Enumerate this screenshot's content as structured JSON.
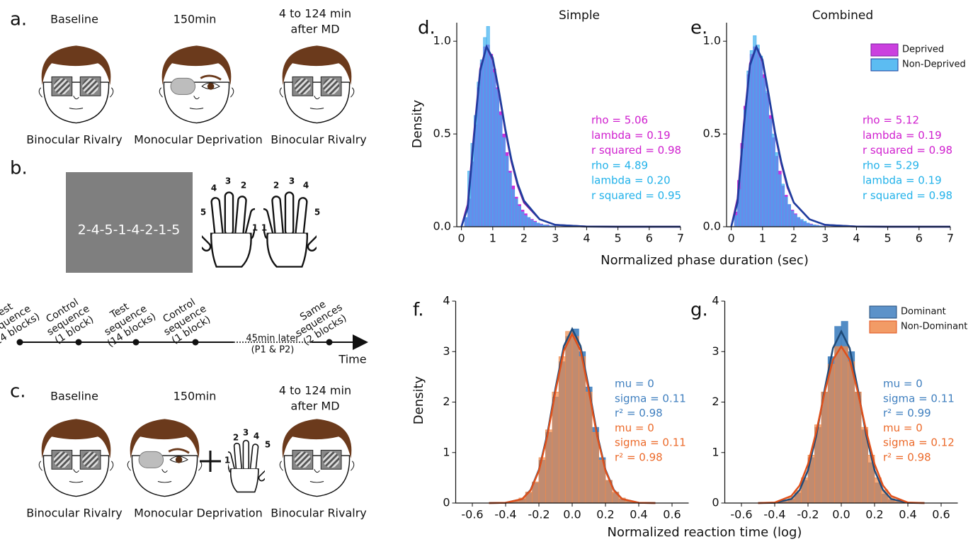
{
  "diagram": {
    "panel_a": {
      "letter": "a.",
      "top_labels": [
        "Baseline",
        "150min",
        "4 to 124 min",
        "after MD"
      ],
      "bottom_labels": [
        "Binocular Rivalry",
        "Monocular Deprivation",
        "Binocular Rivalry"
      ]
    },
    "panel_b": {
      "letter": "b.",
      "sequence": "2-4-5-1-4-2-1-5",
      "left_fingers": [
        "5",
        "4",
        "3",
        "2",
        "1"
      ],
      "right_fingers": [
        "1",
        "2",
        "3",
        "4",
        "5"
      ],
      "timeline": [
        [
          "Test",
          "sequence",
          "(14 blocks)"
        ],
        [
          "Control",
          "sequence",
          "(1 block)"
        ],
        [
          "Test",
          "sequence",
          "(14 blocks)"
        ],
        [
          "Control",
          "sequence",
          "(1 block)"
        ],
        [
          "Same",
          "sequences",
          "(2 blocks)"
        ]
      ],
      "gap": [
        "45min later",
        "(P1 & P2)"
      ],
      "axis": "Time"
    },
    "panel_c": {
      "letter": "c.",
      "top_labels": [
        "Baseline",
        "150min",
        "4 to 124 min",
        "after MD"
      ],
      "bottom_labels": [
        "Binocular Rivalry",
        "Monocular Deprivation",
        "Binocular Rivalry"
      ],
      "fingers": [
        "1",
        "2",
        "3",
        "4",
        "5"
      ]
    }
  },
  "chart_data": [
    {
      "type": "histogram",
      "panel": "d.",
      "title": "Simple",
      "ylabel": "Density",
      "xlabel": "Normalized phase duration (sec)",
      "xlim": [
        -0.15,
        7
      ],
      "xticks": [
        0,
        1,
        2,
        3,
        4,
        5,
        6,
        7
      ],
      "ylim": [
        0,
        1.1
      ],
      "yticks": [
        {
          "value": 0,
          "label": "0.0"
        },
        {
          "value": 0.5,
          "label": "0.5"
        },
        {
          "value": 1,
          "label": "1.0"
        }
      ],
      "bins": [
        0,
        0.1,
        0.2,
        0.3,
        0.4,
        0.5,
        0.6,
        0.7,
        0.8,
        0.9,
        1,
        1.1,
        1.2,
        1.3,
        1.4,
        1.5,
        1.6,
        1.7,
        1.8,
        1.9,
        2,
        2.1,
        2.2,
        2.3,
        2.4,
        2.5,
        2.6,
        2.7,
        2.8,
        2.9,
        3
      ],
      "fit_x": [
        0,
        0.2,
        0.4,
        0.6,
        0.8,
        1,
        1.2,
        1.4,
        1.6,
        1.8,
        2,
        2.5,
        3,
        4,
        5,
        6,
        7
      ],
      "series": [
        {
          "name": "Deprived",
          "color": "#c21fd9",
          "fit_color": "#7a1aa0",
          "values": [
            0,
            0.05,
            0.15,
            0.35,
            0.55,
            0.75,
            0.88,
            0.97,
            0.98,
            0.93,
            0.85,
            0.75,
            0.62,
            0.5,
            0.4,
            0.3,
            0.22,
            0.16,
            0.12,
            0.09,
            0.07,
            0.05,
            0.04,
            0.03,
            0.02,
            0.015,
            0.01,
            0.01,
            0.005,
            0.005
          ],
          "fit": [
            0,
            0.12,
            0.5,
            0.85,
            0.97,
            0.9,
            0.72,
            0.52,
            0.35,
            0.22,
            0.13,
            0.04,
            0.01,
            0.001,
            0,
            0,
            0
          ],
          "stats": [
            "rho = 5.06",
            "lambda = 0.19",
            "r squared = 0.98"
          ],
          "stats_color": "#d020cf"
        },
        {
          "name": "Non-Deprived",
          "color": "#3fb0f0",
          "fit_color": "#1d3f9e",
          "values": [
            0,
            0.05,
            0.3,
            0.45,
            0.6,
            0.78,
            0.9,
            1.02,
            1.08,
            0.92,
            0.83,
            0.74,
            0.6,
            0.48,
            0.38,
            0.29,
            0.2,
            0.15,
            0.11,
            0.08,
            0.06,
            0.05,
            0.035,
            0.025,
            0.02,
            0.012,
            0.01,
            0.008,
            0.005,
            0.004
          ],
          "fit": [
            0,
            0.1,
            0.48,
            0.84,
            0.97,
            0.91,
            0.73,
            0.53,
            0.36,
            0.23,
            0.14,
            0.04,
            0.01,
            0.001,
            0,
            0,
            0
          ],
          "stats": [
            "rho = 4.89",
            "lambda = 0.20",
            "r squared = 0.95"
          ],
          "stats_color": "#22b2ea"
        }
      ]
    },
    {
      "type": "histogram",
      "panel": "e.",
      "title": "Combined",
      "legend": "upper right",
      "xlim": [
        -0.15,
        7
      ],
      "xticks": [
        0,
        1,
        2,
        3,
        4,
        5,
        6,
        7
      ],
      "ylim": [
        0,
        1.1
      ],
      "yticks": [
        {
          "value": 0,
          "label": "0.0"
        },
        {
          "value": 0.5,
          "label": "0.5"
        },
        {
          "value": 1,
          "label": "1.0"
        }
      ],
      "bins": [
        0,
        0.1,
        0.2,
        0.3,
        0.4,
        0.5,
        0.6,
        0.7,
        0.8,
        0.9,
        1,
        1.1,
        1.2,
        1.3,
        1.4,
        1.5,
        1.6,
        1.7,
        1.8,
        1.9,
        2,
        2.1,
        2.2,
        2.3,
        2.4,
        2.5,
        2.6,
        2.7,
        2.8,
        2.9,
        3
      ],
      "fit_x": [
        0,
        0.2,
        0.4,
        0.6,
        0.8,
        1,
        1.2,
        1.4,
        1.6,
        1.8,
        2,
        2.5,
        3,
        4,
        5,
        6,
        7
      ],
      "series": [
        {
          "name": "Deprived",
          "color": "#c21fd9",
          "fit_color": "#7a1aa0",
          "values": [
            0,
            0.08,
            0.25,
            0.45,
            0.65,
            0.82,
            0.93,
            0.97,
            0.96,
            0.9,
            0.82,
            0.72,
            0.6,
            0.48,
            0.38,
            0.3,
            0.22,
            0.17,
            0.12,
            0.09,
            0.07,
            0.05,
            0.035,
            0.025,
            0.02,
            0.015,
            0.01,
            0.008,
            0.005,
            0.004
          ],
          "fit": [
            0,
            0.15,
            0.55,
            0.88,
            0.97,
            0.89,
            0.7,
            0.5,
            0.34,
            0.21,
            0.13,
            0.04,
            0.01,
            0.001,
            0,
            0,
            0
          ],
          "stats": [
            "rho = 5.12",
            "lambda = 0.19",
            "r squared = 0.98"
          ],
          "stats_color": "#d020cf"
        },
        {
          "name": "Non-Deprived",
          "color": "#3fb0f0",
          "fit_color": "#1d3f9e",
          "values": [
            0,
            0.06,
            0.2,
            0.42,
            0.63,
            0.84,
            0.95,
            1.03,
            0.98,
            0.92,
            0.8,
            0.73,
            0.58,
            0.5,
            0.4,
            0.28,
            0.23,
            0.16,
            0.12,
            0.085,
            0.065,
            0.05,
            0.04,
            0.03,
            0.02,
            0.012,
            0.01,
            0.007,
            0.005,
            0.003
          ],
          "fit": [
            0,
            0.13,
            0.53,
            0.87,
            0.97,
            0.9,
            0.71,
            0.51,
            0.35,
            0.22,
            0.13,
            0.04,
            0.01,
            0.001,
            0,
            0,
            0
          ],
          "stats": [
            "rho = 5.29",
            "lambda = 0.19",
            "r squared = 0.98"
          ],
          "stats_color": "#22b2ea"
        }
      ]
    },
    {
      "type": "histogram",
      "panel": "f.",
      "ylabel": "Density",
      "xlabel": "Normalized reaction time (log)",
      "xlim": [
        -0.7,
        0.7
      ],
      "xticks": [
        -0.6,
        -0.4,
        -0.2,
        {
          "value": 0,
          "label": "0.0"
        },
        0.2,
        0.4,
        0.6
      ],
      "ylim": [
        0,
        4
      ],
      "yticks": [
        0,
        1,
        2,
        3,
        4
      ],
      "bins": [
        -0.4,
        -0.36,
        -0.32,
        -0.28,
        -0.24,
        -0.2,
        -0.16,
        -0.12,
        -0.08,
        -0.04,
        0,
        0.04,
        0.08,
        0.12,
        0.16,
        0.2,
        0.24,
        0.28,
        0.32,
        0.36,
        0.4
      ],
      "fit_x": [
        -0.5,
        -0.4,
        -0.3,
        -0.25,
        -0.2,
        -0.15,
        -0.1,
        -0.05,
        0,
        0.05,
        0.1,
        0.15,
        0.2,
        0.25,
        0.3,
        0.4,
        0.5
      ],
      "series": [
        {
          "name": "Dominant",
          "color": "#3f7fbf",
          "fit_color": "#1f4a78",
          "values": [
            0.01,
            0.03,
            0.08,
            0.2,
            0.4,
            0.85,
            1.4,
            2.1,
            2.8,
            3.3,
            3.45,
            3.0,
            2.3,
            1.5,
            0.9,
            0.45,
            0.2,
            0.08,
            0.03,
            0.01
          ],
          "fit": [
            0,
            0.005,
            0.08,
            0.26,
            0.66,
            1.36,
            2.28,
            3.11,
            3.45,
            3.11,
            2.28,
            1.36,
            0.66,
            0.26,
            0.08,
            0.005,
            0
          ],
          "stats": [
            "mu = 0",
            "sigma = 0.11",
            "r² = 0.98"
          ],
          "stats_color": "#3f7fbf"
        },
        {
          "name": "Non-Dominant",
          "color": "#f08a4b",
          "fit_color": "#e0501a",
          "values": [
            0.02,
            0.04,
            0.1,
            0.22,
            0.42,
            0.9,
            1.45,
            2.2,
            2.9,
            3.4,
            3.3,
            2.9,
            2.2,
            1.4,
            0.85,
            0.45,
            0.22,
            0.1,
            0.04,
            0.02
          ],
          "fit": [
            0,
            0.005,
            0.08,
            0.25,
            0.64,
            1.32,
            2.22,
            3.02,
            3.35,
            3.02,
            2.22,
            1.32,
            0.64,
            0.25,
            0.08,
            0.005,
            0
          ],
          "stats": [
            "mu = 0",
            "sigma = 0.11",
            "r² = 0.98"
          ],
          "stats_color": "#ec6a2a"
        }
      ]
    },
    {
      "type": "histogram",
      "panel": "g.",
      "legend": "upper right",
      "xlim": [
        -0.7,
        0.7
      ],
      "xticks": [
        -0.6,
        -0.4,
        -0.2,
        {
          "value": 0,
          "label": "0.0"
        },
        0.2,
        0.4,
        0.6
      ],
      "ylim": [
        0,
        4
      ],
      "yticks": [
        0,
        1,
        2,
        3,
        4
      ],
      "bins": [
        -0.4,
        -0.36,
        -0.32,
        -0.28,
        -0.24,
        -0.2,
        -0.16,
        -0.12,
        -0.08,
        -0.04,
        0,
        0.04,
        0.08,
        0.12,
        0.16,
        0.2,
        0.24,
        0.28,
        0.32,
        0.36,
        0.4
      ],
      "fit_x": [
        -0.5,
        -0.4,
        -0.3,
        -0.25,
        -0.2,
        -0.15,
        -0.1,
        -0.05,
        0,
        0.05,
        0.1,
        0.15,
        0.2,
        0.25,
        0.3,
        0.4,
        0.5
      ],
      "series": [
        {
          "name": "Dominant",
          "color": "#3f7fbf",
          "fit_color": "#1f4a78",
          "values": [
            0.01,
            0.03,
            0.08,
            0.2,
            0.45,
            0.9,
            1.5,
            2.2,
            2.9,
            3.5,
            3.6,
            3.0,
            2.2,
            1.45,
            0.8,
            0.4,
            0.18,
            0.07,
            0.03,
            0.01
          ],
          "fit": [
            0,
            0.005,
            0.08,
            0.26,
            0.65,
            1.34,
            2.25,
            3.07,
            3.4,
            3.07,
            2.25,
            1.34,
            0.65,
            0.26,
            0.08,
            0.005,
            0
          ],
          "stats": [
            "mu = 0",
            "sigma = 0.11",
            "r² = 0.99"
          ],
          "stats_color": "#3f7fbf"
        },
        {
          "name": "Non-Dominant",
          "color": "#f08a4b",
          "fit_color": "#e0501a",
          "values": [
            0.02,
            0.05,
            0.12,
            0.25,
            0.5,
            0.95,
            1.55,
            2.2,
            2.75,
            3.1,
            3.1,
            2.8,
            2.2,
            1.5,
            0.95,
            0.5,
            0.26,
            0.12,
            0.05,
            0.02
          ],
          "fit": [
            0,
            0.01,
            0.14,
            0.35,
            0.77,
            1.42,
            2.19,
            2.84,
            3.1,
            2.84,
            2.19,
            1.42,
            0.77,
            0.35,
            0.14,
            0.01,
            0
          ],
          "stats": [
            "mu = 0",
            "sigma = 0.12",
            "r² = 0.98"
          ],
          "stats_color": "#ec6a2a"
        }
      ]
    }
  ]
}
